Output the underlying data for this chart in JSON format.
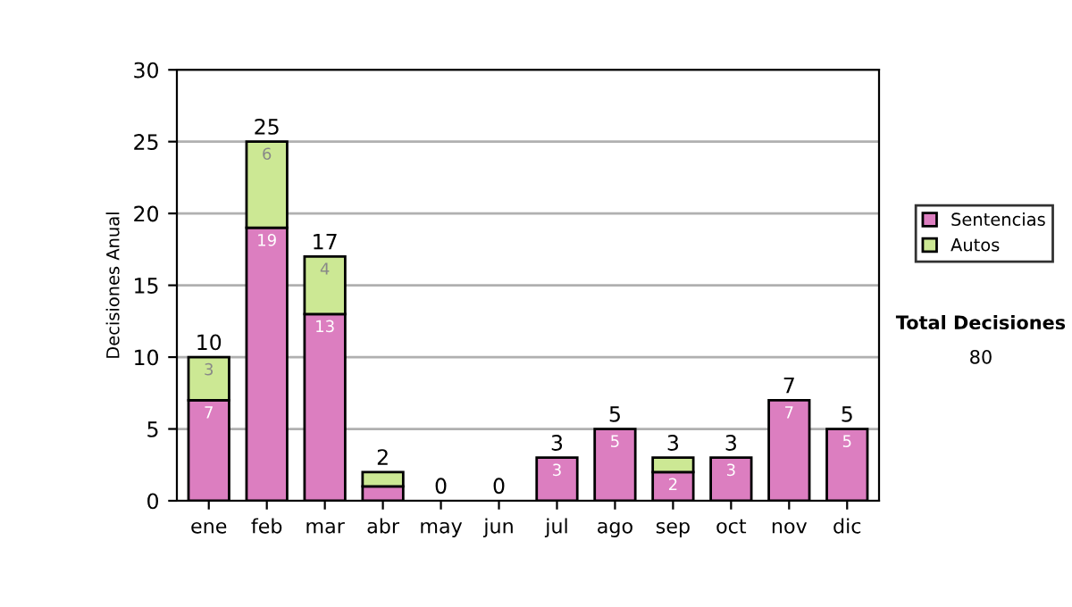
{
  "chart_data": {
    "type": "bar",
    "stacked": true,
    "ylabel": "Decisiones Anual",
    "categories": [
      "ene",
      "feb",
      "mar",
      "abr",
      "may",
      "jun",
      "jul",
      "ago",
      "sep",
      "oct",
      "nov",
      "dic"
    ],
    "series": [
      {
        "name": "Sentencias",
        "color": "#dc7ec0",
        "values": [
          7,
          19,
          13,
          1,
          0,
          0,
          3,
          5,
          2,
          3,
          7,
          5
        ],
        "value_labels": [
          "7",
          "19",
          "13",
          null,
          null,
          null,
          "3",
          "5",
          "2",
          "3",
          "7",
          "5"
        ]
      },
      {
        "name": "Autos",
        "color": "#cce894",
        "values": [
          3,
          6,
          4,
          1,
          0,
          0,
          0,
          0,
          1,
          0,
          0,
          0
        ],
        "value_labels": [
          "3",
          "6",
          "4",
          null,
          null,
          null,
          null,
          null,
          null,
          null,
          null,
          null
        ]
      }
    ],
    "totals": [
      "10",
      "25",
      "17",
      "2",
      "0",
      "0",
      "3",
      "5",
      "3",
      "3",
      "7",
      "5"
    ],
    "ylim": [
      0,
      30
    ],
    "yticks": [
      0,
      5,
      10,
      15,
      20,
      25,
      30
    ],
    "grid": "y",
    "legend": "right",
    "annotations": [
      "Total Decisiones",
      "80"
    ]
  }
}
